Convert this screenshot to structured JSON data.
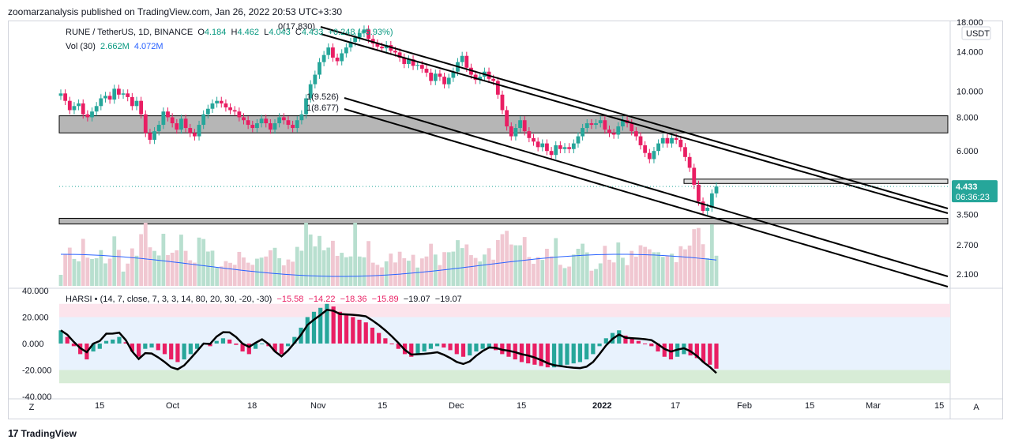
{
  "header": {
    "published": "zoomarzanalysis published on TradingView.com, Jan 26, 2022 20:53 UTC+3:30"
  },
  "footer": {
    "brand": "TradingView",
    "logo": "17"
  },
  "legend": {
    "symbol": "RUNE / TetherUS, 1D, BINANCE",
    "open_label": "O",
    "open": "4.184",
    "high_label": "H",
    "high": "4.462",
    "low_label": "L",
    "low": "4.043",
    "close_label": "C",
    "close": "4.433",
    "change": "+0.248 (+5.93%)",
    "vol_label": "Vol (30)",
    "vol1": "2.662M",
    "vol2": "4.072M",
    "harsi_label": "HARSI • (14, 7, close, 7, 3, 3, 14, 80, 20, 30, -20, -30)",
    "harsi_v1": "−15.58",
    "harsi_v2": "−14.22",
    "harsi_v3": "−18.36",
    "harsi_v4": "−15.89",
    "harsi_v5": "−19.07",
    "harsi_v6": "−19.07"
  },
  "annotations": {
    "fib0": "0(17.830)",
    "fib1a": "1(9.526)",
    "fib1b": "1(8.677)"
  },
  "price_axis": {
    "currency_button": "USDT",
    "current_price": "4.433",
    "countdown": "06:36:23"
  },
  "buttons": {
    "left": "Z",
    "right": "A"
  },
  "colors": {
    "up": "#26a69a",
    "down": "#e91e63",
    "vol_up": "#b8dfcf",
    "vol_down": "#f0c7d1",
    "vol_ma": "#2962ff",
    "zone": "#9e9e9e",
    "harsi_line": "#000000",
    "ob_band": "#fce4ec",
    "os_band": "#d7ecd6",
    "mid_band": "#e8f2fd"
  },
  "chart_data": [
    {
      "type": "candlestick",
      "title": "RUNE / TetherUS, 1D, BINANCE",
      "y_axis": "log",
      "ylim": [
        1.9,
        18
      ],
      "y_ticks": [
        "18.000",
        "14.000",
        "10.000",
        "8.000",
        "6.000",
        "3.500",
        "2.700",
        "2.100"
      ],
      "x_ticks": [
        "15",
        "Oct",
        "18",
        "Nov",
        "15",
        "Dec",
        "15",
        "2022",
        "17",
        "Feb",
        "15",
        "Mar",
        "15"
      ],
      "close_approx": [
        9.8,
        9.2,
        8.5,
        8.8,
        9.0,
        8.2,
        8.0,
        8.4,
        8.8,
        9.4,
        9.6,
        9.3,
        10.2,
        9.7,
        9.8,
        9.5,
        8.8,
        9.2,
        8.2,
        7.0,
        6.6,
        7.1,
        7.5,
        8.4,
        8.0,
        7.6,
        7.2,
        7.9,
        7.3,
        7.0,
        6.8,
        7.5,
        8.2,
        8.6,
        9.0,
        9.2,
        9.0,
        8.7,
        8.5,
        8.4,
        8.0,
        7.8,
        7.5,
        7.3,
        7.6,
        7.9,
        7.6,
        7.2,
        7.6,
        8.0,
        7.8,
        7.5,
        7.3,
        7.8,
        8.2,
        9.4,
        10.6,
        11.5,
        12.8,
        13.6,
        14.5,
        13.3,
        12.9,
        13.8,
        14.5,
        15.2,
        15.8,
        16.4,
        16.9,
        15.6,
        15.0,
        14.6,
        14.4,
        14.8,
        14.1,
        13.9,
        13.3,
        12.6,
        13.1,
        12.4,
        12.5,
        12.1,
        11.7,
        10.9,
        11.6,
        11.3,
        10.6,
        11.2,
        11.8,
        12.8,
        13.5,
        12.2,
        11.5,
        11.0,
        11.3,
        11.8,
        11.1,
        10.9,
        9.7,
        8.5,
        7.4,
        6.8,
        7.3,
        7.8,
        7.1,
        6.7,
        6.5,
        6.2,
        6.4,
        6.0,
        5.8,
        6.3,
        6.1,
        6.2,
        6.1,
        6.4,
        6.8,
        7.3,
        7.6,
        7.5,
        7.6,
        7.8,
        7.2,
        7.0,
        6.9,
        7.4,
        7.8,
        7.6,
        7.1,
        6.8,
        6.3,
        5.9,
        5.6,
        6.0,
        6.4,
        6.7,
        6.4,
        6.7,
        6.6,
        6.2,
        5.7,
        5.2,
        4.5,
        3.9,
        3.6,
        3.7,
        4.18,
        4.433
      ],
      "horizontal_zones": [
        [
          7.0,
          8.1
        ],
        [
          3.22,
          3.38
        ],
        [
          4.55,
          4.72
        ]
      ],
      "channels": [
        {
          "label": "0(17.830)",
          "start": "Nov",
          "start_price": 17.83
        },
        {
          "label": "1(9.526)",
          "start": "Nov",
          "start_price": 9.526
        },
        {
          "label": "1(8.677)",
          "start": "Nov",
          "start_price": 8.677
        }
      ],
      "last_price": 4.433
    },
    {
      "type": "bar",
      "title": "Vol (30)",
      "series": [
        {
          "name": "Vol (30)",
          "last": "2.662M"
        },
        {
          "name": "MA",
          "last": "4.072M"
        }
      ]
    },
    {
      "type": "bar",
      "title": "HARSI",
      "ylim": [
        -40,
        40
      ],
      "y_ticks": [
        "40.000",
        "20.000",
        "0.000",
        "-20.000",
        "-40.000"
      ],
      "bands": {
        "overbought": [
          20,
          30
        ],
        "oversold": [
          -30,
          -20
        ]
      },
      "values_approx": [
        10,
        5,
        -2,
        -8,
        -12,
        -6,
        -4,
        2,
        3,
        5,
        1,
        -6,
        -10,
        -4,
        -3,
        -5,
        -8,
        -12,
        -14,
        -12,
        -8,
        -4,
        0,
        -2,
        2,
        4,
        3,
        -1,
        -6,
        -8,
        -4,
        0,
        -2,
        -6,
        -8,
        -2,
        5,
        12,
        20,
        24,
        27,
        30,
        28,
        24,
        22,
        20,
        18,
        16,
        12,
        8,
        4,
        0,
        -4,
        -8,
        -10,
        -8,
        -6,
        -4,
        -2,
        -3,
        -5,
        -8,
        -10,
        -9,
        -6,
        -4,
        -3,
        -5,
        -8,
        -10,
        -12,
        -14,
        -15,
        -16,
        -17,
        -18,
        -18,
        -17,
        -16,
        -15,
        -14,
        -12,
        -8,
        -2,
        4,
        8,
        10,
        6,
        4,
        2,
        0,
        -2,
        -6,
        -10,
        -12,
        -10,
        -8,
        -9,
        -11,
        -14,
        -16,
        -19
      ]
    }
  ]
}
